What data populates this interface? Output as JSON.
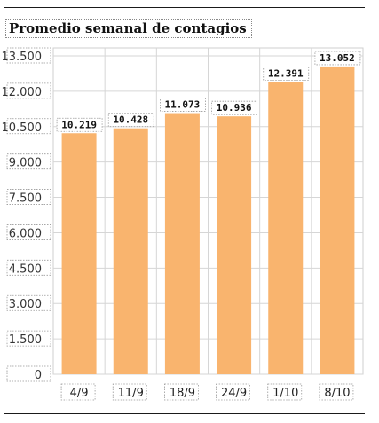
{
  "chart_data": {
    "type": "bar",
    "title": "Promedio semanal de contagios",
    "categories": [
      "4/9",
      "11/9",
      "18/9",
      "24/9",
      "1/10",
      "8/10"
    ],
    "values": [
      10219,
      10428,
      11073,
      10936,
      12391,
      13052
    ],
    "value_labels": [
      "10.219",
      "10.428",
      "11.073",
      "10.936",
      "12.391",
      "13.052"
    ],
    "ylim": [
      0,
      13500
    ],
    "yticks": [
      0,
      1500,
      3000,
      4500,
      6000,
      7500,
      9000,
      10500,
      12000,
      13500
    ],
    "ytick_labels": [
      "0",
      "1.500",
      "3.000",
      "4.500",
      "6.000",
      "7.500",
      "9.000",
      "10.500",
      "12.000",
      "13.500"
    ],
    "grid": true,
    "bar_color": "#f9b46e",
    "xlabel": "",
    "ylabel": ""
  }
}
